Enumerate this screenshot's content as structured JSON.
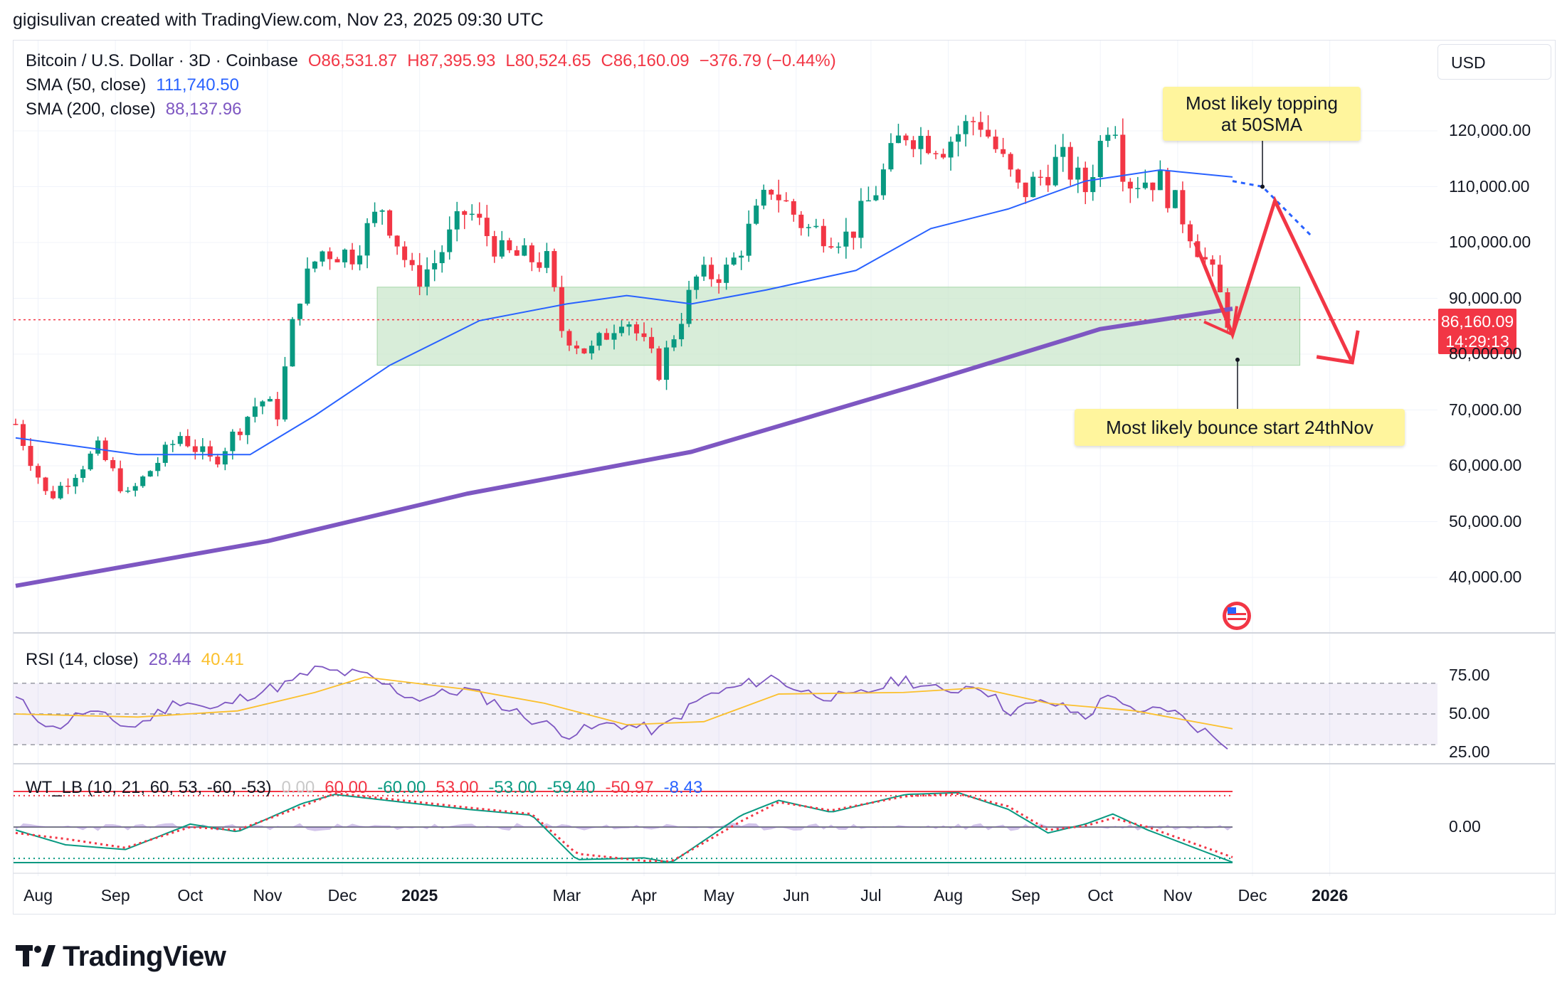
{
  "header": {
    "credit": "gigisulivan created with TradingView.com, Nov 23, 2025 09:30 UTC"
  },
  "legend": {
    "symbol": "Bitcoin / U.S. Dollar · 3D · Coinbase",
    "open": "O86,531.87",
    "high": "H87,395.93",
    "low": "L80,524.65",
    "close": "C86,160.09",
    "change": "−376.79 (−0.44%)",
    "sma50_label": "SMA (50, close)",
    "sma50_value": "111,740.50",
    "sma200_label": "SMA (200, close)",
    "sma200_value": "88,137.96"
  },
  "rsi_legend": {
    "label": "RSI (14, close)",
    "value": "28.44",
    "signal": "40.41"
  },
  "wt_legend": {
    "label": "WT_LB (10, 21, 60, 53, -60, -53)",
    "values": [
      "0.00",
      "60.00",
      "-60.00",
      "53.00",
      "-53.00",
      "-59.40",
      "-50.97",
      "-8.43"
    ]
  },
  "currency": "USD",
  "price_tag": {
    "price": "86,160.09",
    "countdown": "14:29:13"
  },
  "annotations": {
    "top_callout_line1": "Most likely topping",
    "top_callout_line2": "at 50SMA",
    "bottom_callout": "Most likely bounce start 24thNov"
  },
  "brand": "TradingView",
  "colors": {
    "up": "#089981",
    "down": "#f23645",
    "sma50": "#2962ff",
    "sma200": "#7e57c2",
    "zone": "#c8e6c9",
    "rsi": "#7e57c2",
    "rsi_signal": "#fbc02d",
    "arrow": "#f23645"
  },
  "chart_data": [
    {
      "type": "candlestick",
      "title": "Bitcoin / U.S. Dollar · 3D · Coinbase",
      "x_ticks": [
        "Aug",
        "Sep",
        "Oct",
        "Nov",
        "Dec",
        "2025",
        "Mar",
        "Apr",
        "May",
        "Jun",
        "Jul",
        "Aug",
        "Sep",
        "Oct",
        "Nov",
        "Dec",
        "2026"
      ],
      "y_ticks": [
        "120,000.00",
        "110,000.00",
        "100,000.00",
        "90,000.00",
        "80,000.00",
        "70,000.00",
        "60,000.00",
        "50,000.00",
        "40,000.00"
      ],
      "ylim": [
        31000,
        127000
      ],
      "candle_close_path": [
        [
          "2024-07-23",
          67500
        ],
        [
          "2024-08-05",
          54000
        ],
        [
          "2024-08-25",
          63000
        ],
        [
          "2024-09-06",
          54500
        ],
        [
          "2024-09-27",
          65500
        ],
        [
          "2024-10-10",
          60500
        ],
        [
          "2024-10-29",
          72000
        ],
        [
          "2024-11-05",
          69500
        ],
        [
          "2024-11-13",
          90000
        ],
        [
          "2024-11-22",
          98500
        ],
        [
          "2024-12-05",
          98000
        ],
        [
          "2024-12-17",
          106500
        ],
        [
          "2024-12-30",
          93000
        ],
        [
          "2025-01-07",
          96500
        ],
        [
          "2025-01-20",
          106000
        ],
        [
          "2025-02-03",
          98000
        ],
        [
          "2025-02-21",
          96500
        ],
        [
          "2025-02-27",
          84500
        ],
        [
          "2025-03-10",
          80000
        ],
        [
          "2025-03-24",
          87500
        ],
        [
          "2025-04-07",
          77000
        ],
        [
          "2025-04-22",
          93500
        ],
        [
          "2025-05-05",
          95000
        ],
        [
          "2025-05-22",
          110000
        ],
        [
          "2025-06-05",
          102500
        ],
        [
          "2025-06-22",
          101000
        ],
        [
          "2025-07-03",
          109500
        ],
        [
          "2025-07-14",
          120000
        ],
        [
          "2025-07-30",
          117500
        ],
        [
          "2025-08-13",
          122500
        ],
        [
          "2025-08-30",
          108500
        ],
        [
          "2025-09-15",
          115000
        ],
        [
          "2025-09-25",
          109500
        ],
        [
          "2025-10-06",
          124500
        ],
        [
          "2025-10-11",
          111000
        ],
        [
          "2025-10-24",
          111500
        ],
        [
          "2025-11-04",
          104000
        ],
        [
          "2025-11-16",
          93000
        ],
        [
          "2025-11-22",
          85000
        ],
        [
          "2025-11-23",
          86160.09
        ]
      ],
      "sma50_path": [
        [
          "2024-07-23",
          65000
        ],
        [
          "2024-09-10",
          62000
        ],
        [
          "2024-10-25",
          62000
        ],
        [
          "2024-11-20",
          69000
        ],
        [
          "2024-12-20",
          78000
        ],
        [
          "2025-01-25",
          86000
        ],
        [
          "2025-03-01",
          89000
        ],
        [
          "2025-03-25",
          90500
        ],
        [
          "2025-04-20",
          89000
        ],
        [
          "2025-05-20",
          91500
        ],
        [
          "2025-06-25",
          95000
        ],
        [
          "2025-07-25",
          102500
        ],
        [
          "2025-08-25",
          106000
        ],
        [
          "2025-09-25",
          111000
        ],
        [
          "2025-10-25",
          113000
        ],
        [
          "2025-11-23",
          111740.5
        ]
      ],
      "sma50_projection": [
        [
          "2025-11-23",
          111000
        ],
        [
          "2025-12-05",
          110000
        ],
        [
          "2025-12-25",
          101000
        ]
      ],
      "sma200_path": [
        [
          "2024-07-23",
          38500
        ],
        [
          "2024-11-01",
          46500
        ],
        [
          "2025-01-20",
          55000
        ],
        [
          "2025-04-20",
          62500
        ],
        [
          "2025-07-20",
          74500
        ],
        [
          "2025-10-01",
          84500
        ],
        [
          "2025-11-23",
          88137.96
        ]
      ],
      "support_zone": {
        "y_range": [
          78000,
          92000
        ],
        "x_range": [
          "2024-12-15",
          "2025-12-20"
        ]
      },
      "projection_arrow": [
        [
          "2025-11-08",
          100000
        ],
        [
          "2025-11-23",
          83500
        ],
        [
          "2025-12-10",
          107500
        ],
        [
          "2026-01-10",
          78500
        ]
      ],
      "annotations": [
        "Most likely topping at 50SMA",
        "Most likely bounce start 24thNov"
      ]
    },
    {
      "type": "line",
      "title": "RSI (14, close)",
      "y_ticks": [
        "75.00",
        "50.00",
        "25.00"
      ],
      "bands": [
        30,
        50,
        70
      ],
      "ylim": [
        20,
        81
      ],
      "rsi_path": [
        [
          "2024-07-23",
          60
        ],
        [
          "2024-08-07",
          40
        ],
        [
          "2024-08-20",
          52
        ],
        [
          "2024-09-08",
          41
        ],
        [
          "2024-09-28",
          60
        ],
        [
          "2024-10-10",
          52
        ],
        [
          "2024-10-25",
          63
        ],
        [
          "2024-11-10",
          70
        ],
        [
          "2024-11-20",
          79
        ],
        [
          "2024-12-10",
          75
        ],
        [
          "2024-12-30",
          60
        ],
        [
          "2025-01-20",
          66
        ],
        [
          "2025-02-10",
          50
        ],
        [
          "2025-03-02",
          37
        ],
        [
          "2025-03-20",
          44
        ],
        [
          "2025-04-07",
          39
        ],
        [
          "2025-04-25",
          61
        ],
        [
          "2025-05-22",
          74
        ],
        [
          "2025-06-05",
          64
        ],
        [
          "2025-06-22",
          60
        ],
        [
          "2025-07-14",
          73
        ],
        [
          "2025-07-30",
          64
        ],
        [
          "2025-08-13",
          70
        ],
        [
          "2025-08-25",
          52
        ],
        [
          "2025-09-10",
          58
        ],
        [
          "2025-09-25",
          48
        ],
        [
          "2025-10-06",
          65
        ],
        [
          "2025-10-15",
          48
        ],
        [
          "2025-10-27",
          55
        ],
        [
          "2025-11-04",
          46
        ],
        [
          "2025-11-23",
          28.44
        ]
      ],
      "signal_path": [
        [
          "2024-07-23",
          50
        ],
        [
          "2024-09-10",
          48
        ],
        [
          "2024-10-20",
          52
        ],
        [
          "2024-11-20",
          64
        ],
        [
          "2024-12-10",
          74
        ],
        [
          "2025-01-20",
          66
        ],
        [
          "2025-02-20",
          57
        ],
        [
          "2025-03-25",
          43
        ],
        [
          "2025-04-25",
          45
        ],
        [
          "2025-05-25",
          63
        ],
        [
          "2025-07-14",
          64
        ],
        [
          "2025-08-13",
          67
        ],
        [
          "2025-09-10",
          57
        ],
        [
          "2025-10-15",
          52
        ],
        [
          "2025-11-23",
          40.41
        ]
      ]
    },
    {
      "type": "line",
      "title": "WT_LB (10, 21, 60, 53, -60, -53)",
      "y_ticks": [
        "0.00"
      ],
      "levels": [
        60,
        53,
        -53,
        -60
      ],
      "ylim": [
        -70,
        70
      ],
      "wt1_path": [
        [
          "2024-07-23",
          -5
        ],
        [
          "2024-08-12",
          -30
        ],
        [
          "2024-09-05",
          -38
        ],
        [
          "2024-10-01",
          5
        ],
        [
          "2024-10-20",
          -8
        ],
        [
          "2024-11-15",
          40
        ],
        [
          "2024-11-28",
          55
        ],
        [
          "2024-12-25",
          42
        ],
        [
          "2025-01-20",
          30
        ],
        [
          "2025-02-15",
          20
        ],
        [
          "2025-03-05",
          -55
        ],
        [
          "2025-04-01",
          -52
        ],
        [
          "2025-04-12",
          -60
        ],
        [
          "2025-05-10",
          20
        ],
        [
          "2025-05-25",
          45
        ],
        [
          "2025-06-15",
          25
        ],
        [
          "2025-07-15",
          55
        ],
        [
          "2025-08-05",
          58
        ],
        [
          "2025-08-25",
          30
        ],
        [
          "2025-09-10",
          -10
        ],
        [
          "2025-09-25",
          5
        ],
        [
          "2025-10-06",
          22
        ],
        [
          "2025-10-20",
          -5
        ],
        [
          "2025-11-23",
          -59.4
        ]
      ],
      "wt2_path": [
        [
          "2024-07-23",
          -10
        ],
        [
          "2024-08-12",
          -20
        ],
        [
          "2024-09-05",
          -35
        ],
        [
          "2024-10-01",
          0
        ],
        [
          "2024-10-20",
          -5
        ],
        [
          "2024-11-15",
          35
        ],
        [
          "2024-11-28",
          57
        ],
        [
          "2024-12-25",
          45
        ],
        [
          "2025-01-20",
          33
        ],
        [
          "2025-02-15",
          22
        ],
        [
          "2025-03-05",
          -45
        ],
        [
          "2025-04-01",
          -57
        ],
        [
          "2025-04-12",
          -58
        ],
        [
          "2025-05-10",
          10
        ],
        [
          "2025-05-25",
          42
        ],
        [
          "2025-06-15",
          28
        ],
        [
          "2025-07-15",
          52
        ],
        [
          "2025-08-05",
          56
        ],
        [
          "2025-08-25",
          35
        ],
        [
          "2025-09-10",
          -5
        ],
        [
          "2025-09-25",
          2
        ],
        [
          "2025-10-06",
          15
        ],
        [
          "2025-10-20",
          0
        ],
        [
          "2025-11-23",
          -50.97
        ]
      ],
      "histogram_last": -8.43
    }
  ]
}
